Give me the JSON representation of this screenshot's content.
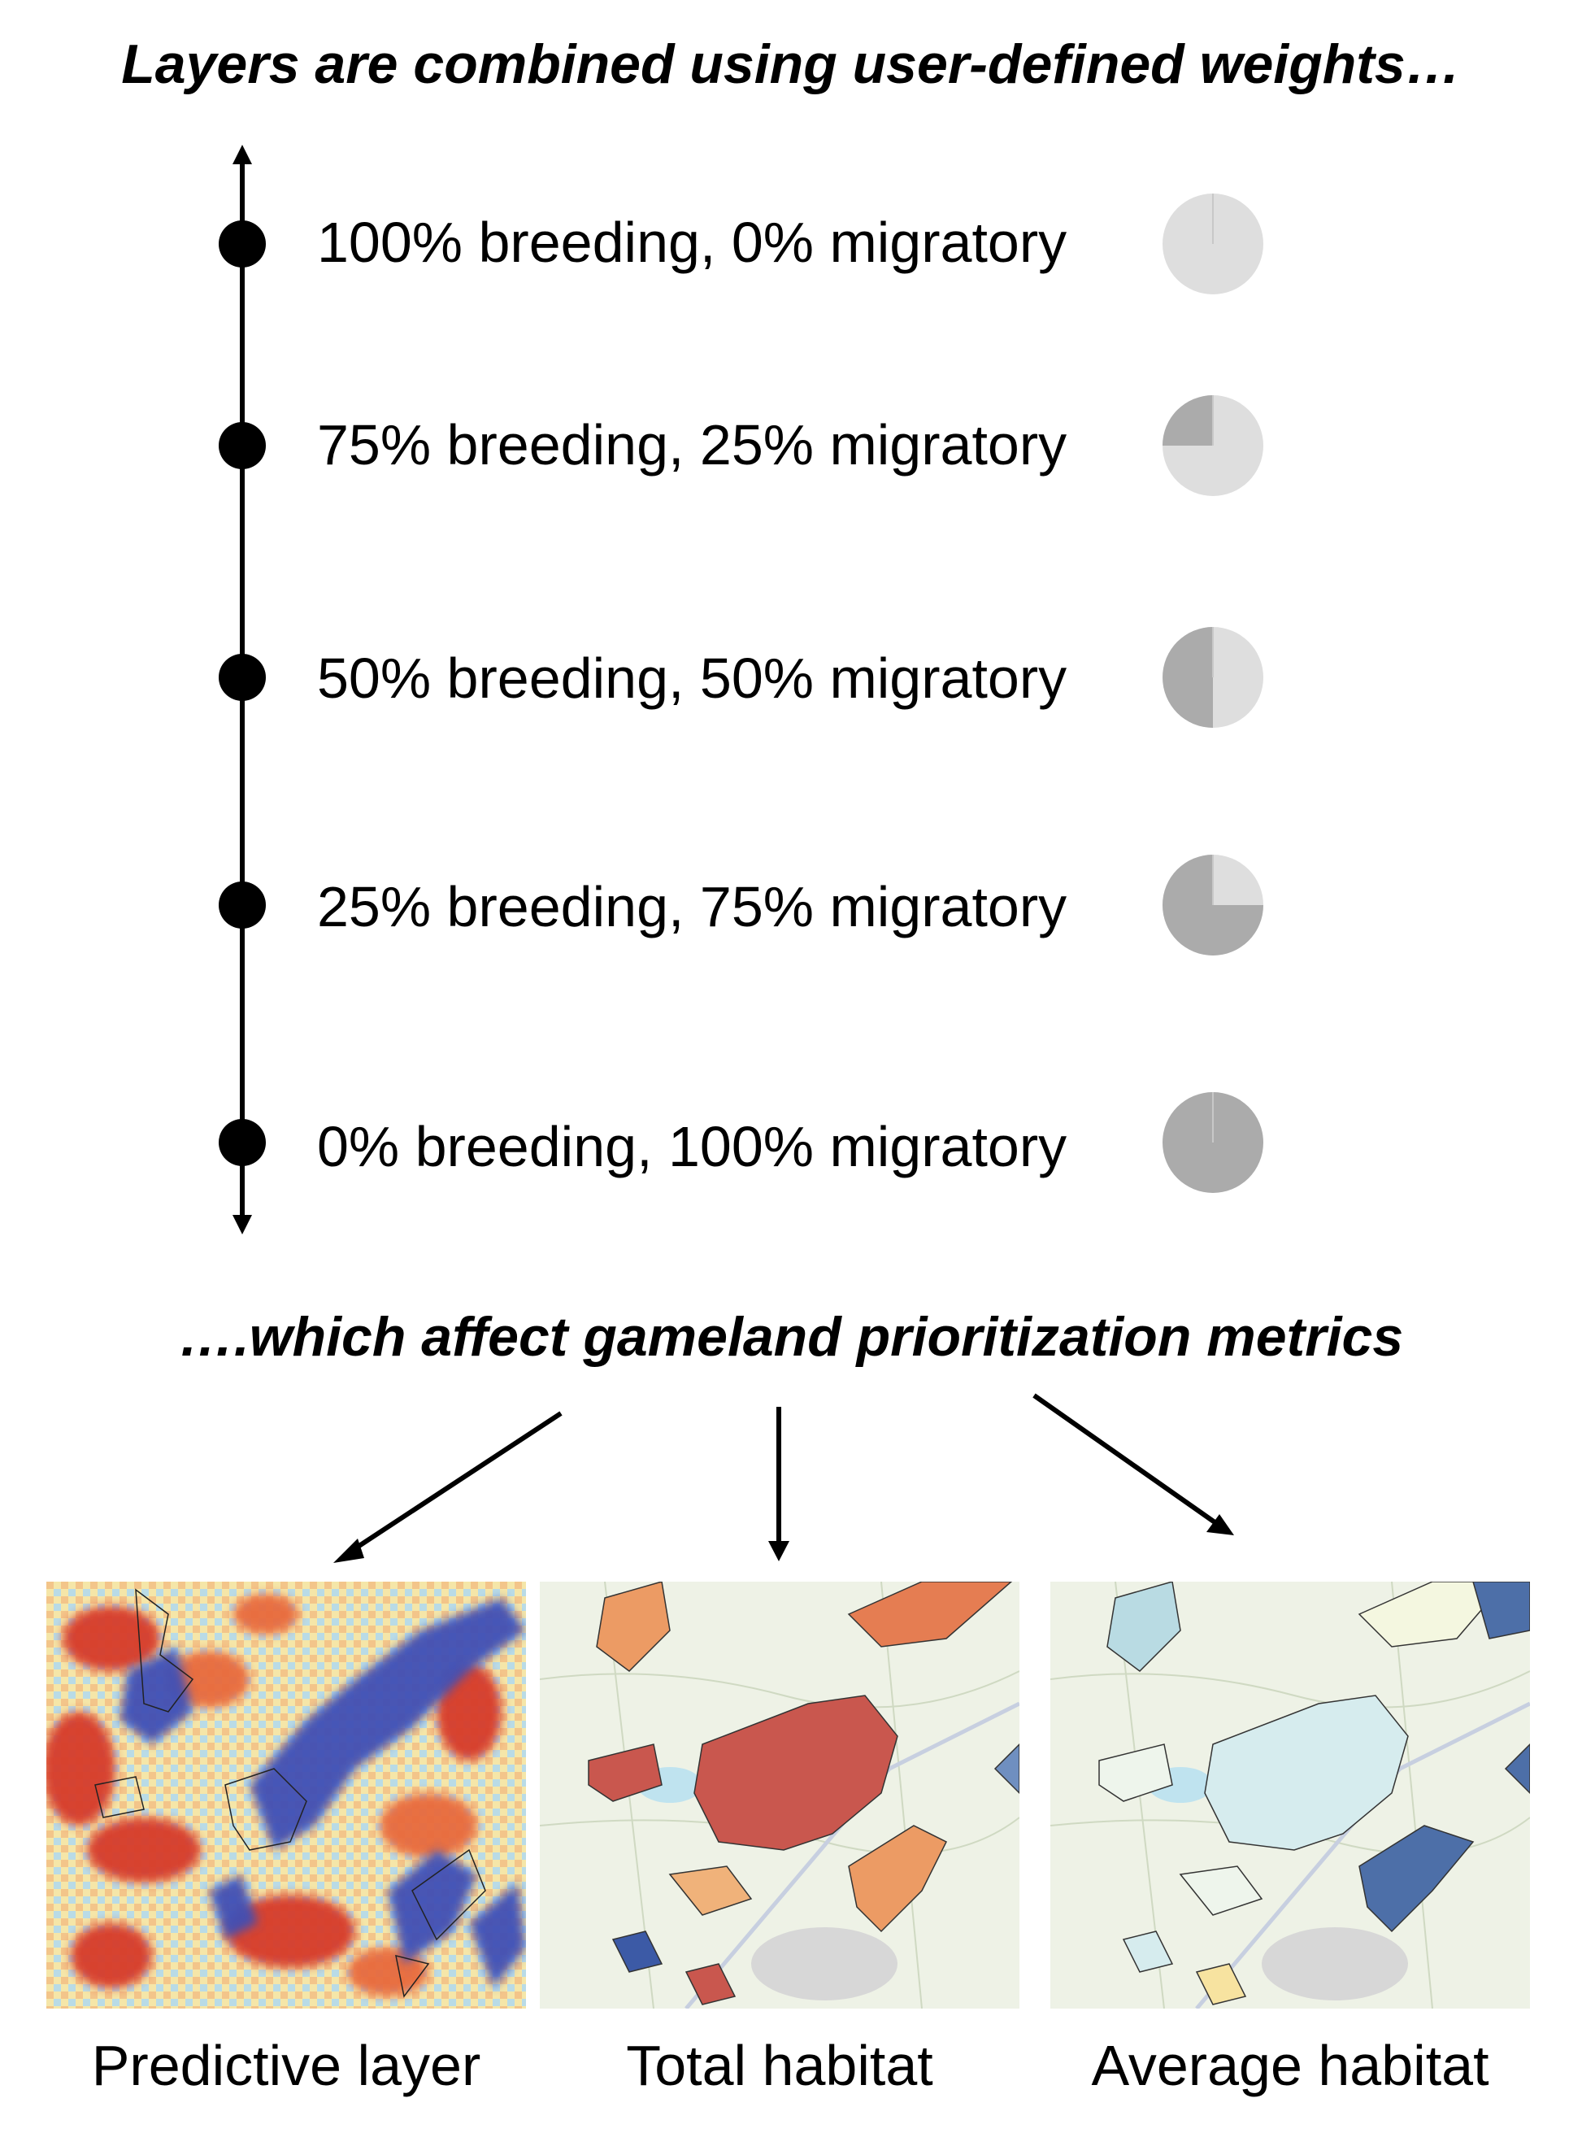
{
  "headings": {
    "top": "Layers are combined using user-defined weights…",
    "middle": "….which affect gameland prioritization metrics"
  },
  "weights": [
    {
      "label": "100% breeding, 0% migratory",
      "breeding": 100,
      "migratory": 0
    },
    {
      "label": "75% breeding, 25% migratory",
      "breeding": 75,
      "migratory": 25
    },
    {
      "label": "50% breeding, 50% migratory",
      "breeding": 50,
      "migratory": 50
    },
    {
      "label": "25% breeding, 75% migratory",
      "breeding": 25,
      "migratory": 75
    },
    {
      "label": "0% breeding, 100% migratory",
      "breeding": 0,
      "migratory": 100
    }
  ],
  "colors": {
    "breeding_share": "#dedede",
    "migratory_share": "#ababab"
  },
  "maps": [
    {
      "caption": "Predictive layer",
      "icon": "heatmap-map-icon"
    },
    {
      "caption": "Total habitat",
      "icon": "habitat-map-icon"
    },
    {
      "caption": "Average habitat",
      "icon": "habitat-map-icon"
    }
  ]
}
